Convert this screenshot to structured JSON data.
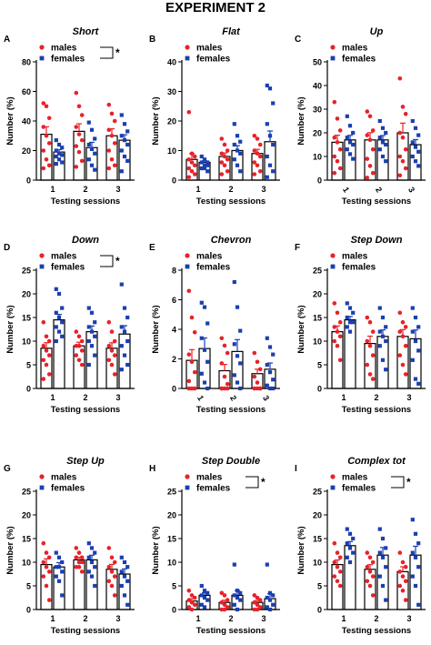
{
  "figure_title": "EXPERIMENT 2",
  "colors": {
    "males": "#e8222a",
    "females": "#1b3fb0",
    "bar": "#000000"
  },
  "chart_data": [
    {
      "type": "bar",
      "panel": "A",
      "title": "Short",
      "xlabel": "Testing sessions",
      "ylabel": "Number (%)",
      "categories": [
        "1",
        "2",
        "3"
      ],
      "ylim": [
        0,
        80
      ],
      "yticks": [
        0,
        20,
        40,
        60,
        80
      ],
      "legend": [
        "males",
        "females"
      ],
      "legend_position": "top-right",
      "significance": "*",
      "series": [
        {
          "name": "males",
          "values": [
            31,
            33,
            30
          ],
          "points": [
            [
              52,
              50,
              42,
              36,
              30,
              25,
              20,
              14,
              10,
              8
            ],
            [
              59,
              50,
              44,
              36,
              31,
              27,
              23,
              19,
              13,
              9
            ],
            [
              51,
              45,
              40,
              34,
              30,
              25,
              20,
              14,
              10,
              8
            ]
          ]
        },
        {
          "name": "females",
          "values": [
            19,
            22,
            27
          ],
          "points": [
            [
              27,
              24,
              22,
              20,
              18,
              17,
              16,
              14,
              12,
              11
            ],
            [
              39,
              34,
              28,
              24,
              21,
              18,
              14,
              10,
              7
            ],
            [
              44,
              38,
              33,
              30,
              27,
              24,
              20,
              16,
              13,
              6
            ]
          ]
        }
      ]
    },
    {
      "type": "bar",
      "panel": "B",
      "title": "Flat",
      "xlabel": "Testing sessions",
      "ylabel": "Number (%)",
      "categories": [
        "1",
        "2",
        "3"
      ],
      "ylim": [
        0,
        40
      ],
      "yticks": [
        0,
        10,
        20,
        30,
        40
      ],
      "legend": [
        "males",
        "females"
      ],
      "legend_position": "top-right",
      "series": [
        {
          "name": "males",
          "values": [
            7,
            8,
            9
          ],
          "points": [
            [
              23,
              9,
              8,
              7,
              6,
              5,
              4,
              3,
              2,
              1
            ],
            [
              14,
              12,
              10,
              9,
              8,
              7,
              6,
              5,
              3,
              2
            ],
            [
              15,
              14,
              12,
              10,
              9,
              8,
              6,
              5,
              3,
              2
            ]
          ]
        },
        {
          "name": "females",
          "values": [
            6,
            10,
            13
          ],
          "points": [
            [
              8,
              7,
              6,
              6,
              5,
              5,
              4,
              4,
              3
            ],
            [
              19,
              15,
              13,
              12,
              10,
              9,
              7,
              5,
              3
            ],
            [
              32,
              31,
              26,
              19,
              15,
              12,
              8,
              5,
              3,
              1
            ]
          ]
        }
      ]
    },
    {
      "type": "bar",
      "panel": "C",
      "title": "Up",
      "xlabel": "Testing sessions",
      "ylabel": "Number (%)",
      "categories": [
        "1",
        "2",
        "3"
      ],
      "ylim": [
        0,
        50
      ],
      "yticks": [
        0,
        10,
        20,
        30,
        40,
        50
      ],
      "legend": [
        "males",
        "females"
      ],
      "legend_position": "top-right",
      "tick_rotation": 60,
      "series": [
        {
          "name": "males",
          "values": [
            16,
            17,
            20
          ],
          "points": [
            [
              33,
              26,
              21,
              18,
              16,
              13,
              10,
              8,
              5,
              3
            ],
            [
              29,
              27,
              21,
              19,
              17,
              13,
              9,
              6,
              3,
              1
            ],
            [
              43,
              31,
              28,
              20,
              18,
              13,
              10,
              8,
              5,
              2
            ]
          ]
        },
        {
          "name": "females",
          "values": [
            17,
            17,
            15
          ],
          "points": [
            [
              27,
              23,
              20,
              18,
              16,
              15,
              13,
              11,
              9
            ],
            [
              25,
              22,
              20,
              18,
              16,
              15,
              13,
              10,
              8
            ],
            [
              25,
              22,
              19,
              16,
              14,
              12,
              10,
              8,
              6
            ]
          ]
        }
      ]
    },
    {
      "type": "bar",
      "panel": "D",
      "title": "Down",
      "xlabel": "Testing sessions",
      "ylabel": "Number (%)",
      "categories": [
        "1",
        "2",
        "3"
      ],
      "ylim": [
        0,
        25
      ],
      "yticks": [
        0,
        5,
        10,
        15,
        20,
        25
      ],
      "legend": [
        "males",
        "females"
      ],
      "legend_position": "top-right",
      "significance": "*",
      "series": [
        {
          "name": "males",
          "values": [
            8.5,
            9,
            8.5
          ],
          "points": [
            [
              14,
              11,
              10,
              9,
              8,
              7,
              6,
              5,
              3,
              2
            ],
            [
              12,
              11,
              10,
              9,
              9,
              8,
              7,
              6,
              5
            ],
            [
              14,
              12,
              10,
              9,
              8,
              7,
              6,
              5,
              3
            ]
          ]
        },
        {
          "name": "females",
          "values": [
            14.5,
            12,
            11.5
          ],
          "points": [
            [
              21,
              20,
              17,
              16,
              15,
              14,
              13,
              12,
              11,
              10
            ],
            [
              17,
              16,
              14,
              13,
              12,
              11,
              10,
              9,
              7,
              5
            ],
            [
              22,
              17,
              15,
              13,
              12,
              10,
              9,
              7,
              5,
              4
            ]
          ]
        }
      ]
    },
    {
      "type": "bar",
      "panel": "E",
      "title": "Chevron",
      "xlabel": "Testing sessions",
      "ylabel": "Number (%)",
      "categories": [
        "1",
        "2",
        "3"
      ],
      "ylim": [
        0,
        8
      ],
      "yticks": [
        0,
        2,
        4,
        6,
        8
      ],
      "legend": [
        "males",
        "females"
      ],
      "legend_position": "top-right",
      "tick_rotation": 60,
      "series": [
        {
          "name": "males",
          "values": [
            1.9,
            1.2,
            1.0
          ],
          "points": [
            [
              6.6,
              4.8,
              3.8,
              2.3,
              1.8,
              1.1,
              0.5,
              0,
              0,
              0
            ],
            [
              3.4,
              2.9,
              2.4,
              1.7,
              0.8,
              0.3,
              0,
              0,
              0,
              0
            ],
            [
              2.4,
              1.8,
              1.3,
              0.8,
              0.4,
              0,
              0,
              0,
              0
            ]
          ]
        },
        {
          "name": "females",
          "values": [
            2.7,
            2.5,
            1.3
          ],
          "points": [
            [
              5.8,
              5.5,
              4.4,
              3.4,
              2.6,
              1.8,
              1.0,
              0.4,
              0
            ],
            [
              7.2,
              5.5,
              3.9,
              3.0,
              2.2,
              1.7,
              0.9,
              0.4,
              0
            ],
            [
              3.4,
              2.8,
              2.3,
              1.6,
              1.1,
              0.6,
              0.2,
              0,
              0
            ]
          ]
        }
      ]
    },
    {
      "type": "bar",
      "panel": "F",
      "title": "Step Down",
      "xlabel": "Testing sessions",
      "ylabel": "Number (%)",
      "categories": [
        "1",
        "2",
        "3"
      ],
      "ylim": [
        0,
        25
      ],
      "yticks": [
        0,
        5,
        10,
        15,
        20,
        25
      ],
      "legend": [
        "males",
        "females"
      ],
      "legend_position": "top-right",
      "series": [
        {
          "name": "males",
          "values": [
            12,
            9.5,
            11
          ],
          "points": [
            [
              18,
              16,
              14,
              13,
              12,
              11,
              10,
              9,
              6
            ],
            [
              15,
              14,
              12,
              10,
              9,
              7,
              5,
              3,
              2
            ],
            [
              16,
              14,
              13,
              12,
              11,
              9,
              7,
              5,
              3
            ]
          ]
        },
        {
          "name": "females",
          "values": [
            14.5,
            11,
            10.5
          ],
          "points": [
            [
              18,
              17,
              16,
              15,
              14,
              14,
              13,
              12
            ],
            [
              17,
              15,
              13,
              12,
              11,
              10,
              9,
              6,
              4
            ],
            [
              17,
              15,
              13,
              12,
              10,
              8,
              6,
              2,
              1
            ]
          ]
        }
      ]
    },
    {
      "type": "bar",
      "panel": "G",
      "title": "Step Up",
      "xlabel": "Testing sessions",
      "ylabel": "Number (%)",
      "categories": [
        "1",
        "2",
        "3"
      ],
      "ylim": [
        0,
        25
      ],
      "yticks": [
        0,
        5,
        10,
        15,
        20,
        25
      ],
      "legend": [
        "males",
        "females"
      ],
      "legend_position": "top-right",
      "series": [
        {
          "name": "males",
          "values": [
            9.5,
            10.5,
            8.5
          ],
          "points": [
            [
              14,
              12,
              11,
              10,
              9,
              8,
              7,
              5,
              2
            ],
            [
              13,
              12,
              11,
              11,
              10,
              10,
              9,
              9,
              8
            ],
            [
              13,
              11,
              10,
              9,
              8,
              7,
              6,
              5,
              3
            ]
          ]
        },
        {
          "name": "females",
          "values": [
            9,
            10.5,
            7.5
          ],
          "points": [
            [
              12,
              11,
              10,
              9,
              9,
              8,
              7,
              6,
              3
            ],
            [
              14,
              13,
              12,
              11,
              10,
              9,
              8,
              7,
              5
            ],
            [
              11,
              10,
              9,
              8,
              7,
              6,
              5,
              3,
              1
            ]
          ]
        }
      ]
    },
    {
      "type": "bar",
      "panel": "H",
      "title": "Step Double",
      "xlabel": "Testing sessions",
      "ylabel": "Number (%)",
      "categories": [
        "1",
        "2",
        "3"
      ],
      "ylim": [
        0,
        25
      ],
      "yticks": [
        0,
        5,
        10,
        15,
        20,
        25
      ],
      "legend": [
        "males",
        "females"
      ],
      "legend_position": "top-right",
      "significance": "*",
      "series": [
        {
          "name": "males",
          "values": [
            1.8,
            1.5,
            1.5
          ],
          "points": [
            [
              4,
              3,
              2.5,
              2,
              1.5,
              1,
              0.5,
              0
            ],
            [
              3.5,
              3,
              2,
              1.5,
              1,
              0.5,
              0,
              0
            ],
            [
              3,
              2.5,
              2,
              1.5,
              1,
              0.5,
              0,
              0
            ]
          ]
        },
        {
          "name": "females",
          "values": [
            3,
            3,
            2.3
          ],
          "points": [
            [
              5,
              4,
              3.5,
              3,
              2.5,
              2,
              1,
              0.5
            ],
            [
              9.5,
              4,
              3.5,
              3,
              2.5,
              2,
              1,
              0
            ],
            [
              9.5,
              3.5,
              3,
              2.5,
              2,
              1,
              0.5,
              0
            ]
          ]
        }
      ]
    },
    {
      "type": "bar",
      "panel": "I",
      "title": "Complex tot",
      "xlabel": "Testing sessions",
      "ylabel": "Number (%)",
      "categories": [
        "1",
        "2",
        "3"
      ],
      "ylim": [
        0,
        25
      ],
      "yticks": [
        0,
        5,
        10,
        15,
        20,
        25
      ],
      "legend": [
        "males",
        "females"
      ],
      "legend_position": "top-right",
      "significance": "*",
      "series": [
        {
          "name": "males",
          "values": [
            9.5,
            8.5,
            8
          ],
          "points": [
            [
              14,
              12,
              11,
              10,
              9,
              8,
              7,
              6,
              5
            ],
            [
              12,
              11,
              10,
              9,
              8,
              7,
              6,
              5,
              3
            ],
            [
              12,
              10,
              9,
              8,
              7,
              6,
              5,
              4,
              2
            ]
          ]
        },
        {
          "name": "females",
          "values": [
            13.5,
            11.5,
            11.5
          ],
          "points": [
            [
              17,
              16,
              15,
              14,
              13,
              12,
              11,
              10
            ],
            [
              17,
              15,
              13,
              12,
              11,
              9,
              7,
              5,
              2
            ],
            [
              19,
              16,
              14,
              12,
              11,
              9,
              7,
              5,
              1
            ]
          ]
        }
      ]
    }
  ]
}
